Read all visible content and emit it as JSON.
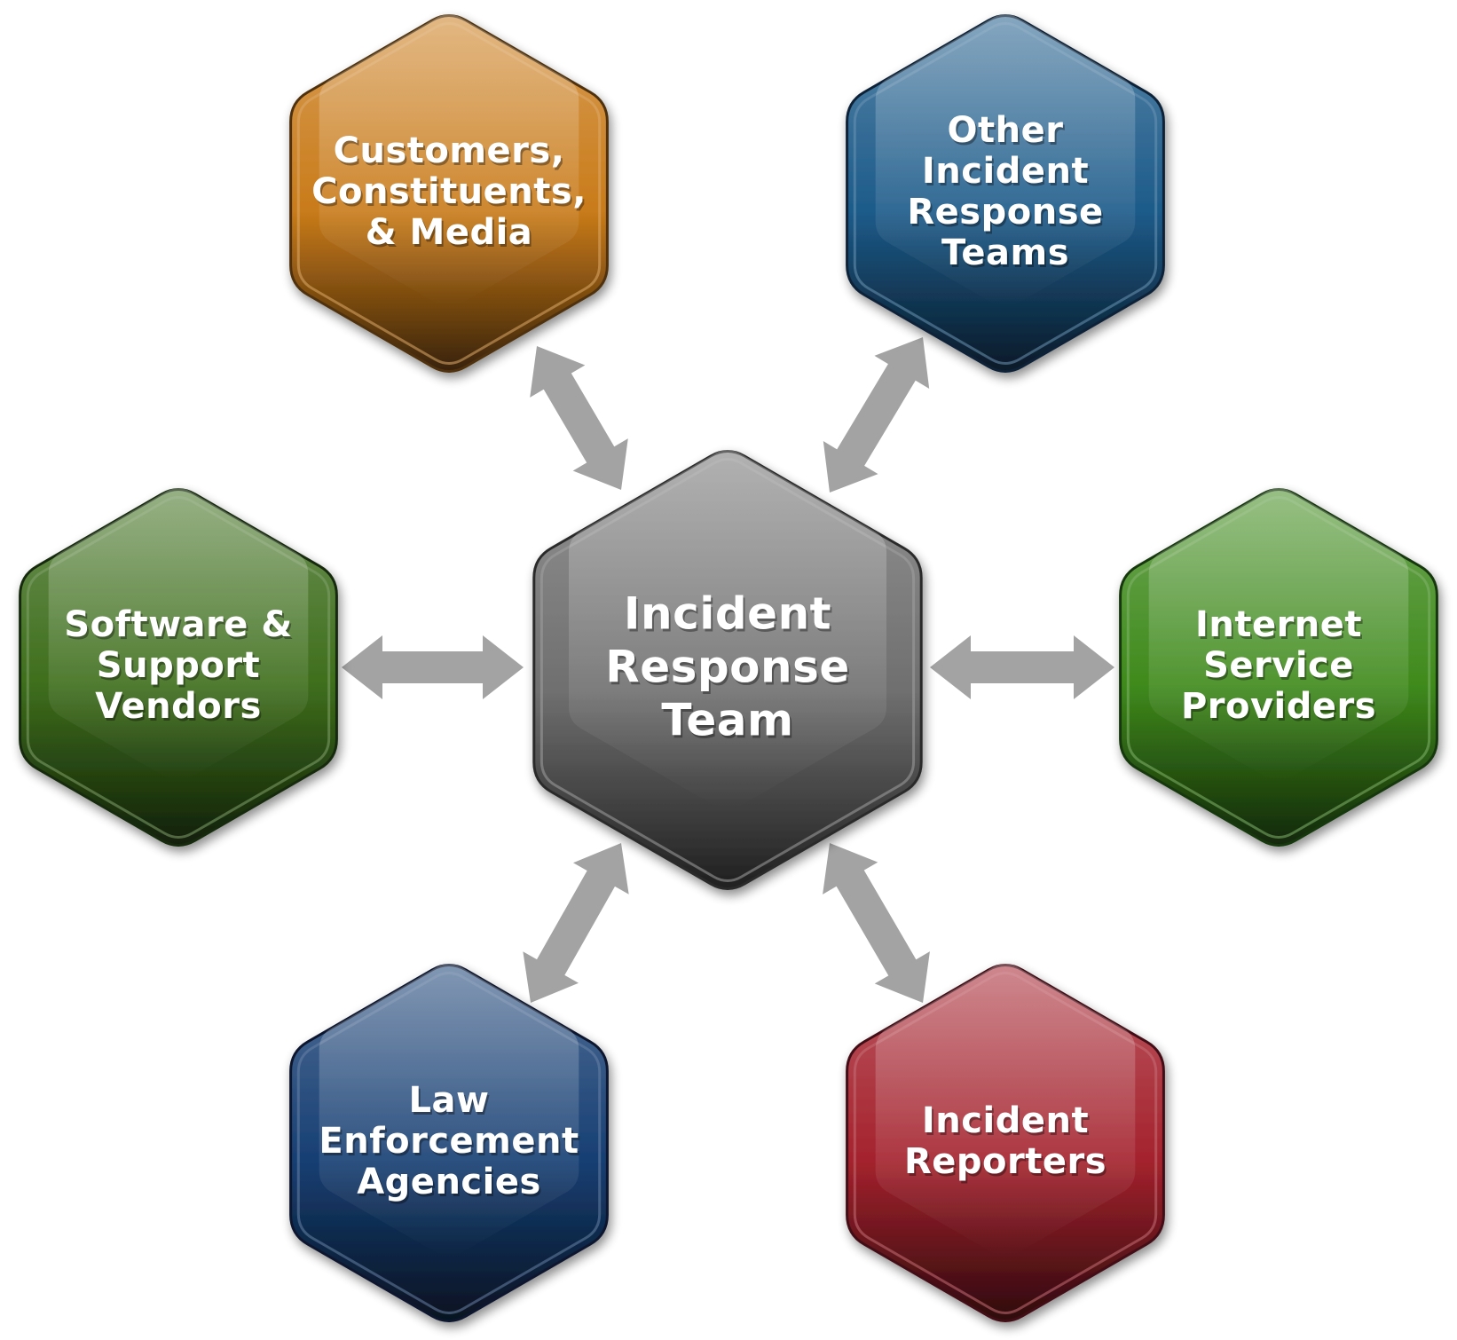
{
  "diagram": {
    "center": {
      "lines": [
        "Incident",
        "Response",
        "Team"
      ],
      "color": "#6f6f6f"
    },
    "nodes": [
      {
        "id": "customers",
        "lines": [
          "Customers,",
          "Constituents,",
          "& Media"
        ],
        "color": "#c97b1a"
      },
      {
        "id": "other-teams",
        "lines": [
          "Other",
          "Incident",
          "Response",
          "Teams"
        ],
        "color": "#1d5b8a"
      },
      {
        "id": "software-vendors",
        "lines": [
          "Software &",
          "Support",
          "Vendors"
        ],
        "color": "#3e6e1c"
      },
      {
        "id": "isp",
        "lines": [
          "Internet",
          "Service",
          "Providers"
        ],
        "color": "#3f8a1c"
      },
      {
        "id": "law-enforcement",
        "lines": [
          "Law",
          "Enforcement",
          "Agencies"
        ],
        "color": "#173f73"
      },
      {
        "id": "reporters",
        "lines": [
          "Incident",
          "Reporters"
        ],
        "color": "#a4222d"
      }
    ],
    "arrow_color": "#a3a3a3"
  }
}
